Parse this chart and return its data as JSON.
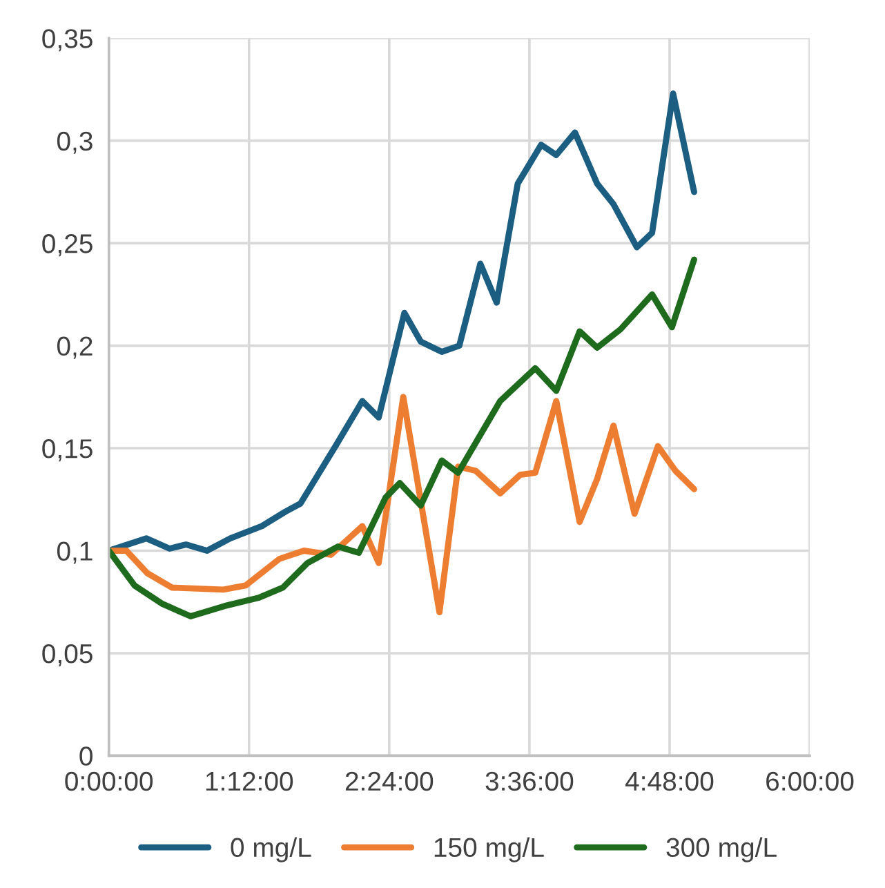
{
  "chart_data": {
    "type": "line",
    "xlim": [
      0,
      6
    ],
    "xticks": [
      {
        "value": 0,
        "label": "0:00:00"
      },
      {
        "value": 1.2,
        "label": "1:12:00"
      },
      {
        "value": 2.4,
        "label": "2:24:00"
      },
      {
        "value": 3.6,
        "label": "3:36:00"
      },
      {
        "value": 4.8,
        "label": "4:48:00"
      },
      {
        "value": 6,
        "label": "6:00:00"
      }
    ],
    "ylim": [
      0,
      0.35
    ],
    "yticks": [
      {
        "value": 0,
        "label": "0"
      },
      {
        "value": 0.05,
        "label": "0,05"
      },
      {
        "value": 0.1,
        "label": "0,1"
      },
      {
        "value": 0.15,
        "label": "0,15"
      },
      {
        "value": 0.2,
        "label": "0,2"
      },
      {
        "value": 0.25,
        "label": "0,25"
      },
      {
        "value": 0.3,
        "label": "0,3"
      },
      {
        "value": 0.35,
        "label": "0,35"
      }
    ],
    "grid": true,
    "legend": "bottom",
    "marker": "none",
    "line_style": "solid",
    "series": [
      {
        "name": "0 mg/L",
        "color": "#1b5e82",
        "x": [
          0,
          0.32,
          0.52,
          0.66,
          0.84,
          1.04,
          1.31,
          1.51,
          1.64,
          1.94,
          2.17,
          2.31,
          2.53,
          2.67,
          2.85,
          3.0,
          3.18,
          3.32,
          3.5,
          3.7,
          3.83,
          3.99,
          4.18,
          4.32,
          4.52,
          4.65,
          4.83,
          5.01
        ],
        "values": [
          0.1,
          0.106,
          0.101,
          0.103,
          0.1,
          0.106,
          0.112,
          0.119,
          0.123,
          0.151,
          0.173,
          0.165,
          0.216,
          0.202,
          0.197,
          0.2,
          0.24,
          0.221,
          0.279,
          0.298,
          0.293,
          0.304,
          0.279,
          0.269,
          0.248,
          0.255,
          0.323,
          0.275
        ]
      },
      {
        "name": "150 mg/L",
        "color": "#ed7d31",
        "x": [
          0,
          0.15,
          0.33,
          0.54,
          0.98,
          1.17,
          1.46,
          1.67,
          1.9,
          2.17,
          2.31,
          2.52,
          2.83,
          2.99,
          3.14,
          3.35,
          3.52,
          3.65,
          3.83,
          4.03,
          4.18,
          4.32,
          4.5,
          4.7,
          4.85,
          5.01
        ],
        "values": [
          0.1,
          0.1,
          0.089,
          0.082,
          0.081,
          0.083,
          0.096,
          0.1,
          0.098,
          0.112,
          0.094,
          0.175,
          0.07,
          0.141,
          0.139,
          0.128,
          0.137,
          0.138,
          0.173,
          0.114,
          0.135,
          0.161,
          0.118,
          0.151,
          0.139,
          0.13
        ]
      },
      {
        "name": "300 mg/L",
        "color": "#1e6b1e",
        "x": [
          0,
          0.22,
          0.46,
          0.7,
          0.99,
          1.28,
          1.49,
          1.7,
          1.96,
          2.14,
          2.37,
          2.49,
          2.67,
          2.85,
          2.99,
          3.35,
          3.65,
          3.83,
          4.03,
          4.18,
          4.38,
          4.65,
          4.82,
          5.01
        ],
        "values": [
          0.1,
          0.083,
          0.074,
          0.068,
          0.073,
          0.077,
          0.082,
          0.094,
          0.102,
          0.099,
          0.126,
          0.133,
          0.122,
          0.144,
          0.138,
          0.173,
          0.189,
          0.178,
          0.207,
          0.199,
          0.208,
          0.225,
          0.209,
          0.242
        ]
      }
    ]
  }
}
